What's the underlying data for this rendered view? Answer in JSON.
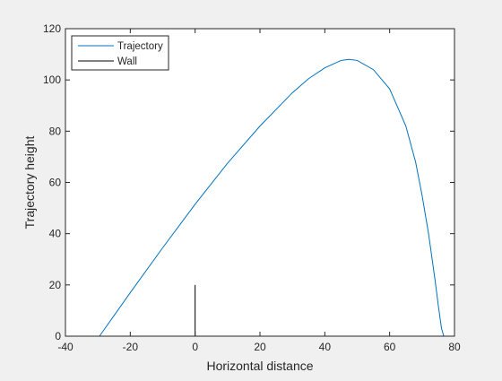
{
  "chart_data": {
    "type": "line",
    "title": "",
    "xlabel": "Horizontal distance",
    "ylabel": "Trajectory height",
    "xlim": [
      -40,
      80
    ],
    "ylim": [
      0,
      120
    ],
    "xticks": [
      -40,
      -20,
      0,
      20,
      40,
      60,
      80
    ],
    "yticks": [
      0,
      20,
      40,
      60,
      80,
      100,
      120
    ],
    "grid": false,
    "legend": {
      "position": "top-left",
      "entries": [
        {
          "label": "Trajectory",
          "color": "#0072bd"
        },
        {
          "label": "Wall",
          "color": "#000000"
        }
      ]
    },
    "series": [
      {
        "name": "Trajectory",
        "color": "#0072bd",
        "x": [
          -29.5,
          -20,
          -10,
          0,
          10,
          20,
          30,
          35,
          40,
          45,
          47.5,
          50,
          55,
          60,
          65,
          68,
          70,
          72,
          74,
          75,
          76,
          76.7
        ],
        "y": [
          0,
          17,
          34.5,
          51.5,
          67.5,
          82,
          95,
          100.5,
          104.7,
          107.6,
          108,
          107.6,
          104,
          96.5,
          82,
          68,
          55,
          40,
          22,
          12,
          3,
          0
        ]
      },
      {
        "name": "Wall",
        "color": "#000000",
        "x": [
          0,
          0
        ],
        "y": [
          0,
          20
        ]
      }
    ]
  }
}
